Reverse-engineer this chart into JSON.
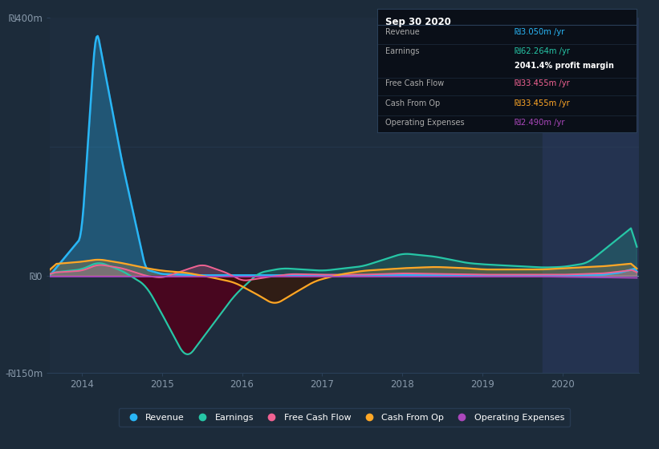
{
  "bg_color": "#1c2b3a",
  "chart_bg": "#1e2d3e",
  "highlight_bg": "#243350",
  "ylim": [
    -150,
    400
  ],
  "xlim": [
    2013.6,
    2020.95
  ],
  "yticks": [
    -150,
    0,
    400
  ],
  "ytick_labels": [
    "-₪150m",
    "₪0",
    "₪400m"
  ],
  "xticks": [
    2014,
    2015,
    2016,
    2017,
    2018,
    2019,
    2020
  ],
  "highlight_x_start": 2019.75,
  "grid_color": "#2a3f58",
  "colors": {
    "revenue": "#29b6f6",
    "earnings": "#26c6a6",
    "free_cash_flow": "#f06292",
    "cash_from_op": "#ffa726",
    "operating_expenses": "#ab47bc"
  },
  "legend_items": [
    "Revenue",
    "Earnings",
    "Free Cash Flow",
    "Cash From Op",
    "Operating Expenses"
  ],
  "legend_colors": [
    "#29b6f6",
    "#26c6a6",
    "#f06292",
    "#ffa726",
    "#ab47bc"
  ]
}
